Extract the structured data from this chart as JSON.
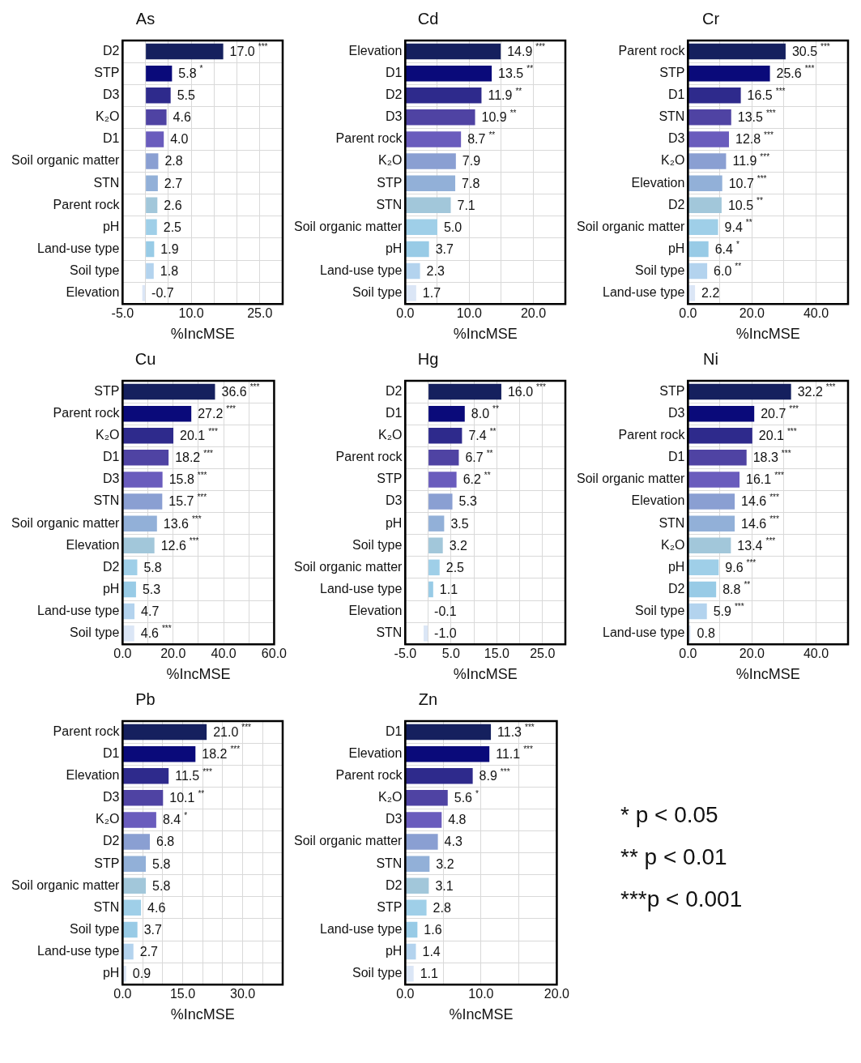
{
  "chart_data": [
    {
      "type": "bar",
      "orientation": "horizontal",
      "title": "As",
      "xlabel": "%IncMSE",
      "grid": true,
      "categories": [
        "D2",
        "STP",
        "D3",
        "K₂O",
        "D1",
        "Soil organic matter",
        "STN",
        "Parent rock",
        "pH",
        "Land-use type",
        "Soil type",
        "Elevation"
      ],
      "values": [
        17.0,
        5.8,
        5.5,
        4.6,
        4.0,
        2.8,
        2.7,
        2.6,
        2.5,
        1.9,
        1.8,
        -0.7
      ],
      "value_labels": [
        "17.0 ***",
        "5.8 *",
        "5.5",
        "4.6",
        "4.0",
        "2.8",
        "2.7",
        "2.6",
        "2.5",
        "1.9",
        "1.8",
        "-0.7"
      ],
      "colors": [
        "#15205e",
        "#0a0a7a",
        "#2e2a8c",
        "#4f43a3",
        "#6a5cbd",
        "#8a9fd2",
        "#92b0d8",
        "#a2c7da",
        "#9fcfe8",
        "#98cbe6",
        "#b3d3ee",
        "#dbe6f6"
      ],
      "xlim": [
        -5,
        30
      ],
      "xticks": [
        {
          "value": -5,
          "label": "-5.0"
        },
        {
          "value": 0,
          "label": null
        },
        {
          "value": 5,
          "label": null
        },
        {
          "value": 10,
          "label": "10.0"
        },
        {
          "value": 15,
          "label": null
        },
        {
          "value": 20,
          "label": null
        },
        {
          "value": 25,
          "label": "25.0"
        },
        {
          "value": 30,
          "label": null
        }
      ]
    },
    {
      "type": "bar",
      "orientation": "horizontal",
      "title": "Cd",
      "xlabel": "%IncMSE",
      "grid": true,
      "categories": [
        "Elevation",
        "D1",
        "D2",
        "D3",
        "Parent rock",
        "K₂O",
        "STP",
        "STN",
        "Soil organic matter",
        "pH",
        "Land-use type",
        "Soil type"
      ],
      "values": [
        14.9,
        13.5,
        11.9,
        10.9,
        8.7,
        7.9,
        7.8,
        7.1,
        5.0,
        3.7,
        2.3,
        1.7
      ],
      "value_labels": [
        "14.9 ***",
        "13.5 **",
        "11.9 **",
        "10.9 **",
        "8.7 **",
        "7.9",
        "7.8",
        "7.1",
        "5.0",
        "3.7",
        "2.3",
        "1.7"
      ],
      "colors": [
        "#15205e",
        "#0a0a7a",
        "#2e2a8c",
        "#4f43a3",
        "#6a5cbd",
        "#8a9fd2",
        "#92b0d8",
        "#a2c7da",
        "#9fcfe8",
        "#98cbe6",
        "#b3d3ee",
        "#dbe6f6"
      ],
      "xlim": [
        0,
        25
      ],
      "xticks": [
        {
          "value": 0,
          "label": "0.0"
        },
        {
          "value": 5,
          "label": null
        },
        {
          "value": 10,
          "label": "10.0"
        },
        {
          "value": 15,
          "label": null
        },
        {
          "value": 20,
          "label": "20.0"
        },
        {
          "value": 25,
          "label": null
        }
      ]
    },
    {
      "type": "bar",
      "orientation": "horizontal",
      "title": "Cr",
      "xlabel": "%IncMSE",
      "grid": true,
      "categories": [
        "Parent rock",
        "STP",
        "D1",
        "STN",
        "D3",
        "K₂O",
        "Elevation",
        "D2",
        "Soil organic matter",
        "pH",
        "Soil type",
        "Land-use type"
      ],
      "values": [
        30.5,
        25.6,
        16.5,
        13.5,
        12.8,
        11.9,
        10.7,
        10.5,
        9.4,
        6.4,
        6.0,
        2.2
      ],
      "value_labels": [
        "30.5 ***",
        "25.6 ***",
        "16.5 ***",
        "13.5 ***",
        "12.8 ***",
        "11.9 ***",
        "10.7 ***",
        "10.5 **",
        "9.4 **",
        "6.4 *",
        "6.0 **",
        "2.2"
      ],
      "colors": [
        "#15205e",
        "#0a0a7a",
        "#2e2a8c",
        "#4f43a3",
        "#6a5cbd",
        "#8a9fd2",
        "#92b0d8",
        "#a2c7da",
        "#9fcfe8",
        "#98cbe6",
        "#b3d3ee",
        "#dbe6f6"
      ],
      "xlim": [
        0,
        50
      ],
      "xticks": [
        {
          "value": 0,
          "label": "0.0"
        },
        {
          "value": 10,
          "label": null
        },
        {
          "value": 20,
          "label": "20.0"
        },
        {
          "value": 30,
          "label": null
        },
        {
          "value": 40,
          "label": "40.0"
        },
        {
          "value": 50,
          "label": null
        }
      ]
    },
    {
      "type": "bar",
      "orientation": "horizontal",
      "title": "Cu",
      "xlabel": "%IncMSE",
      "grid": true,
      "categories": [
        "STP",
        "Parent rock",
        "K₂O",
        "D1",
        "D3",
        "STN",
        "Soil organic matter",
        "Elevation",
        "D2",
        "pH",
        "Land-use type",
        "Soil type"
      ],
      "values": [
        36.6,
        27.2,
        20.1,
        18.2,
        15.8,
        15.7,
        13.6,
        12.6,
        5.8,
        5.3,
        4.7,
        4.6
      ],
      "value_labels": [
        "36.6 ***",
        "27.2 ***",
        "20.1 ***",
        "18.2 ***",
        "15.8 ***",
        "15.7 ***",
        "13.6 ***",
        "12.6 ***",
        "5.8",
        "5.3",
        "4.7",
        "4.6 ***"
      ],
      "colors": [
        "#15205e",
        "#0a0a7a",
        "#2e2a8c",
        "#4f43a3",
        "#6a5cbd",
        "#8a9fd2",
        "#92b0d8",
        "#a2c7da",
        "#9fcfe8",
        "#98cbe6",
        "#b3d3ee",
        "#dbe6f6"
      ],
      "xlim": [
        0,
        60
      ],
      "xticks": [
        {
          "value": 0,
          "label": "0.0"
        },
        {
          "value": 10,
          "label": null
        },
        {
          "value": 20,
          "label": "20.0"
        },
        {
          "value": 30,
          "label": null
        },
        {
          "value": 40,
          "label": "40.0"
        },
        {
          "value": 50,
          "label": null
        },
        {
          "value": 60,
          "label": "60.0"
        }
      ]
    },
    {
      "type": "bar",
      "orientation": "horizontal",
      "title": "Hg",
      "xlabel": "%IncMSE",
      "grid": true,
      "categories": [
        "D2",
        "D1",
        "K₂O",
        "Parent rock",
        "STP",
        "D3",
        "pH",
        "Soil type",
        "Soil organic matter",
        "Land-use type",
        "Elevation",
        "STN"
      ],
      "values": [
        16.0,
        8.0,
        7.4,
        6.7,
        6.2,
        5.3,
        3.5,
        3.2,
        2.5,
        1.1,
        -0.1,
        -1.0
      ],
      "value_labels": [
        "16.0 ***",
        "8.0 **",
        "7.4 **",
        "6.7 **",
        "6.2 **",
        "5.3",
        "3.5",
        "3.2",
        "2.5",
        "1.1",
        "-0.1",
        "-1.0"
      ],
      "colors": [
        "#15205e",
        "#0a0a7a",
        "#2e2a8c",
        "#4f43a3",
        "#6a5cbd",
        "#8a9fd2",
        "#92b0d8",
        "#a2c7da",
        "#9fcfe8",
        "#98cbe6",
        "#b3d3ee",
        "#dbe6f6"
      ],
      "xlim": [
        -5,
        30
      ],
      "xticks": [
        {
          "value": -5,
          "label": "-5.0"
        },
        {
          "value": 0,
          "label": null
        },
        {
          "value": 5,
          "label": "5.0"
        },
        {
          "value": 10,
          "label": null
        },
        {
          "value": 15,
          "label": "15.0"
        },
        {
          "value": 20,
          "label": null
        },
        {
          "value": 25,
          "label": "25.0"
        },
        {
          "value": 30,
          "label": null
        }
      ]
    },
    {
      "type": "bar",
      "orientation": "horizontal",
      "title": "Ni",
      "xlabel": "%IncMSE",
      "grid": true,
      "categories": [
        "STP",
        "D3",
        "Parent rock",
        "D1",
        "Soil organic matter",
        "Elevation",
        "STN",
        "K₂O",
        "pH",
        "D2",
        "Soil type",
        "Land-use type"
      ],
      "values": [
        32.2,
        20.7,
        20.1,
        18.3,
        16.1,
        14.6,
        14.6,
        13.4,
        9.6,
        8.8,
        5.9,
        0.8
      ],
      "value_labels": [
        "32.2 ***",
        "20.7 ***",
        "20.1 ***",
        "18.3 ***",
        "16.1 ***",
        "14.6 ***",
        "14.6 ***",
        "13.4 ***",
        "9.6 ***",
        "8.8 **",
        "5.9 ***",
        "0.8"
      ],
      "colors": [
        "#15205e",
        "#0a0a7a",
        "#2e2a8c",
        "#4f43a3",
        "#6a5cbd",
        "#8a9fd2",
        "#92b0d8",
        "#a2c7da",
        "#9fcfe8",
        "#98cbe6",
        "#b3d3ee",
        "#dbe6f6"
      ],
      "xlim": [
        0,
        50
      ],
      "xticks": [
        {
          "value": 0,
          "label": "0.0"
        },
        {
          "value": 10,
          "label": null
        },
        {
          "value": 20,
          "label": "20.0"
        },
        {
          "value": 30,
          "label": null
        },
        {
          "value": 40,
          "label": "40.0"
        },
        {
          "value": 50,
          "label": null
        }
      ]
    },
    {
      "type": "bar",
      "orientation": "horizontal",
      "title": "Pb",
      "xlabel": "%IncMSE",
      "grid": true,
      "categories": [
        "Parent rock",
        "D1",
        "Elevation",
        "D3",
        "K₂O",
        "D2",
        "STP",
        "Soil organic matter",
        "STN",
        "Soil type",
        "Land-use type",
        "pH"
      ],
      "values": [
        21.0,
        18.2,
        11.5,
        10.1,
        8.4,
        6.8,
        5.8,
        5.8,
        4.6,
        3.7,
        2.7,
        0.9
      ],
      "value_labels": [
        "21.0 ***",
        "18.2 ***",
        "11.5 ***",
        "10.1 **",
        "8.4 *",
        "6.8",
        "5.8",
        "5.8",
        "4.6",
        "3.7",
        "2.7",
        "0.9"
      ],
      "colors": [
        "#15205e",
        "#0a0a7a",
        "#2e2a8c",
        "#4f43a3",
        "#6a5cbd",
        "#8a9fd2",
        "#92b0d8",
        "#a2c7da",
        "#9fcfe8",
        "#98cbe6",
        "#b3d3ee",
        "#dbe6f6"
      ],
      "xlim": [
        0,
        40
      ],
      "xticks": [
        {
          "value": 0,
          "label": "0.0"
        },
        {
          "value": 5,
          "label": null
        },
        {
          "value": 10,
          "label": null
        },
        {
          "value": 15,
          "label": "15.0"
        },
        {
          "value": 20,
          "label": null
        },
        {
          "value": 25,
          "label": null
        },
        {
          "value": 30,
          "label": "30.0"
        },
        {
          "value": 35,
          "label": null
        },
        {
          "value": 40,
          "label": null
        }
      ]
    },
    {
      "type": "bar",
      "orientation": "horizontal",
      "title": "Zn",
      "xlabel": "%IncMSE",
      "grid": true,
      "categories": [
        "D1",
        "Elevation",
        "Parent rock",
        "K₂O",
        "D3",
        "Soil organic matter",
        "STN",
        "D2",
        "STP",
        "Land-use type",
        "pH",
        "Soil type"
      ],
      "values": [
        11.3,
        11.1,
        8.9,
        5.6,
        4.8,
        4.3,
        3.2,
        3.1,
        2.8,
        1.6,
        1.4,
        1.1
      ],
      "value_labels": [
        "11.3 ***",
        "11.1 ***",
        "8.9 ***",
        "5.6 *",
        "4.8",
        "4.3",
        "3.2",
        "3.1",
        "2.8",
        "1.6",
        "1.4",
        "1.1"
      ],
      "colors": [
        "#15205e",
        "#0a0a7a",
        "#2e2a8c",
        "#4f43a3",
        "#6a5cbd",
        "#8a9fd2",
        "#92b0d8",
        "#a2c7da",
        "#9fcfe8",
        "#98cbe6",
        "#b3d3ee",
        "#dbe6f6"
      ],
      "xlim": [
        0,
        20
      ],
      "xticks": [
        {
          "value": 0,
          "label": "0.0"
        },
        {
          "value": 5,
          "label": null
        },
        {
          "value": 10,
          "label": "10.0"
        },
        {
          "value": 15,
          "label": null
        },
        {
          "value": 20,
          "label": "20.0"
        }
      ]
    },
    {
      "type": "other",
      "annotations": [
        "* p < 0.05",
        "** p < 0.01",
        "***p < 0.001"
      ]
    }
  ]
}
